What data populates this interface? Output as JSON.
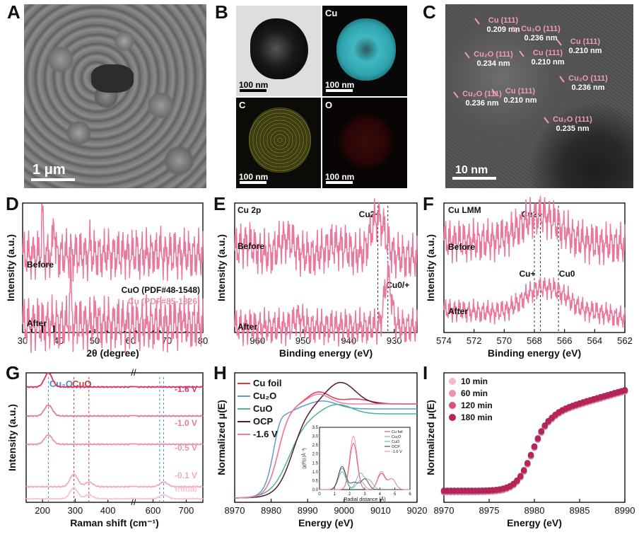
{
  "panel_labels": [
    "A",
    "B",
    "C",
    "D",
    "E",
    "F",
    "G",
    "H",
    "I"
  ],
  "panelA": {
    "scale_bar": "1 μm"
  },
  "panelB": {
    "tiles": [
      {
        "label": "",
        "scale_bar": "100 nm",
        "color": "#dcdcdc"
      },
      {
        "label": "Cu",
        "scale_bar": "100 nm",
        "color": "#0a0a0a"
      },
      {
        "label": "C",
        "scale_bar": "100 nm",
        "color": "#0a0a0a"
      },
      {
        "label": "O",
        "scale_bar": "100 nm",
        "color": "#0a0a0a"
      }
    ]
  },
  "panelC": {
    "scale_bar": "10 nm",
    "annotations": [
      {
        "plane": "Cu (111)",
        "d": "0.209 nm"
      },
      {
        "plane": "Cu₂O (111)",
        "d": "0.236 nm"
      },
      {
        "plane": "Cu (111)",
        "d": "0.210 nm"
      },
      {
        "plane": "Cu₂O (111)",
        "d": "0.234 nm"
      },
      {
        "plane": "Cu (111)",
        "d": "0.210 nm"
      },
      {
        "plane": "Cu₂O (111)",
        "d": "0.236 nm"
      },
      {
        "plane": "Cu₂O (111)",
        "d": "0.236 nm"
      },
      {
        "plane": "Cu (111)",
        "d": "0.210 nm"
      },
      {
        "plane": "Cu₂O (111)",
        "d": "0.235 nm"
      }
    ]
  },
  "chart_data": [
    {
      "id": "D",
      "type": "line",
      "xlabel": "2θ (degree)",
      "ylabel": "Intensity (a.u.)",
      "xlim": [
        30,
        80
      ],
      "xticks": [
        30,
        40,
        50,
        60,
        70,
        80
      ],
      "curve_labels": [
        "Before",
        "After"
      ],
      "references": [
        {
          "name": "CuO (PDF#48-1548)",
          "color": "#111111",
          "lines": [
            [
              32.5,
              0.5
            ],
            [
              35.5,
              1.0
            ],
            [
              38.7,
              1.0
            ],
            [
              48.7,
              0.3
            ],
            [
              53.5,
              0.25
            ],
            [
              58.3,
              0.2
            ],
            [
              61.5,
              0.3
            ],
            [
              66.2,
              0.3
            ],
            [
              68.1,
              0.3
            ],
            [
              72.4,
              0.15
            ],
            [
              75.2,
              0.15
            ]
          ]
        },
        {
          "name": "Cu (PDF#85-1326)",
          "color": "#e890b0",
          "lines": [
            [
              43.3,
              1.0
            ],
            [
              50.4,
              0.5
            ],
            [
              74.1,
              0.3
            ]
          ]
        }
      ],
      "series": [
        {
          "name": "Before",
          "color": "#e8799c",
          "peaks": [
            [
              32.5,
              0.05
            ],
            [
              35.5,
              0.9
            ],
            [
              38.7,
              0.9
            ],
            [
              48.7,
              0.22
            ],
            [
              53.5,
              0.06
            ],
            [
              58.3,
              0.08
            ],
            [
              61.5,
              0.13
            ],
            [
              66.2,
              0.1
            ],
            [
              68.1,
              0.12
            ],
            [
              72.4,
              0.05
            ],
            [
              75.2,
              0.06
            ]
          ]
        },
        {
          "name": "After",
          "color": "#e8799c",
          "peaks": [
            [
              43.3,
              0.92
            ],
            [
              50.4,
              0.28
            ],
            [
              74.1,
              0.18
            ]
          ]
        }
      ]
    },
    {
      "id": "E",
      "type": "line",
      "title": "Cu 2p",
      "xlabel": "Binding energy (eV)",
      "ylabel": "Intensity (a.u.)",
      "xlim": [
        965,
        925
      ],
      "xticks": [
        960,
        950,
        940,
        930
      ],
      "curve_labels": [
        "Before",
        "After"
      ],
      "markers": [
        {
          "x": 933.6,
          "label": "Cu2+"
        },
        {
          "x": 931.4,
          "label": "Cu0/+"
        }
      ],
      "series": [
        {
          "name": "Before",
          "color": "#e8799c",
          "peaks": [
            [
              962.4,
              0.12
            ],
            [
              953.6,
              0.18
            ],
            [
              943.8,
              0.1
            ],
            [
              940.8,
              0.08
            ],
            [
              933.6,
              0.45
            ]
          ]
        },
        {
          "name": "After",
          "color": "#e8799c",
          "peaks": [
            [
              951.0,
              0.1
            ],
            [
              931.4,
              0.5
            ]
          ]
        }
      ]
    },
    {
      "id": "F",
      "type": "line",
      "title": "Cu LMM",
      "xlabel": "Binding energy (eV)",
      "ylabel": "Intensity (a.u.)",
      "xlim": [
        574,
        562
      ],
      "xticks": [
        574,
        572,
        570,
        568,
        566,
        564,
        562
      ],
      "curve_labels": [
        "Before",
        "After"
      ],
      "markers": [
        {
          "x": 568.0,
          "label": "Cu+"
        },
        {
          "x": 567.6,
          "label": "Cu2+"
        },
        {
          "x": 566.4,
          "label": "Cu0"
        }
      ],
      "series": [
        {
          "name": "Before",
          "color": "#e8799c",
          "peaks": [
            [
              567.6,
              0.35
            ]
          ]
        },
        {
          "name": "After",
          "color": "#e8799c",
          "peaks": [
            [
              568.0,
              0.3
            ],
            [
              566.4,
              0.3
            ],
            [
              563.8,
              0.08
            ]
          ]
        }
      ]
    },
    {
      "id": "G",
      "type": "line",
      "xlabel": "Raman shift (cm⁻¹)",
      "ylabel": "Intensity (a.u.)",
      "xlim": [
        150,
        750
      ],
      "xticks": [
        200,
        300,
        400,
        600,
        700
      ],
      "markers": [
        {
          "x": 218,
          "label": "Cu₂O",
          "color": "#4a8fc0"
        },
        {
          "x": 296,
          "label": "",
          "color": "#c94040"
        },
        {
          "x": 342,
          "label": "CuO",
          "color": "#c94040"
        },
        {
          "x": 620,
          "label": "",
          "color": "#4a8fc0"
        },
        {
          "x": 632,
          "label": "",
          "color": "#4a8fc0"
        }
      ],
      "series": [
        {
          "name": "-1.6 V",
          "color": "#d6336c",
          "peaks": [
            [
              218,
              0.9
            ]
          ]
        },
        {
          "name": "-1.0 V",
          "color": "#e57aa0",
          "peaks": [
            [
              218,
              0.7
            ]
          ]
        },
        {
          "name": "-0.5 V",
          "color": "#eb92b2",
          "peaks": [
            [
              218,
              0.6
            ]
          ]
        },
        {
          "name": "-0.1 V",
          "color": "#f1a9c4",
          "peaks": [
            [
              296,
              0.8
            ],
            [
              342,
              0.3
            ],
            [
              632,
              0.3
            ]
          ]
        },
        {
          "name": "Initial",
          "color": "#f6c4d6",
          "peaks": [
            [
              296,
              0.7
            ],
            [
              342,
              0.25
            ],
            [
              632,
              0.25
            ]
          ]
        }
      ]
    },
    {
      "id": "H",
      "type": "line",
      "xlabel": "Energy (eV)",
      "ylabel": "Normalized μ(E)",
      "xlim": [
        8970,
        9020
      ],
      "xticks": [
        8970,
        8980,
        8990,
        9000,
        9010,
        9020
      ],
      "series": [
        {
          "name": "Cu foil",
          "color": "#e63946"
        },
        {
          "name": "Cu₂O",
          "color": "#5aa0c8"
        },
        {
          "name": "CuO",
          "color": "#4fb38a"
        },
        {
          "name": "OCP",
          "color": "#5a1630"
        },
        {
          "name": "-1.6 V",
          "color": "#f07aa8"
        }
      ],
      "inset": {
        "xlabel": "Radial distance (Å)",
        "ylabel": "|χ(R)| (Å⁻³)",
        "xlim": [
          0,
          6
        ],
        "ylim": [
          0,
          3.5
        ],
        "xticks": [
          0,
          1,
          2,
          3,
          4,
          5,
          6
        ],
        "yticks": [
          "0.0",
          "0.5",
          "1.0",
          "1.5",
          "2.0",
          "2.5",
          "3.0",
          "3.5"
        ]
      }
    },
    {
      "id": "I",
      "type": "scatter",
      "xlabel": "Energy (eV)",
      "ylabel": "Normalized μ(E)",
      "xlim": [
        8970,
        8990
      ],
      "xticks": [
        8970,
        8975,
        8980,
        8985,
        8990
      ],
      "series": [
        {
          "name": "10 min",
          "color": "#f5b6cc"
        },
        {
          "name": "60 min",
          "color": "#ee8fb3"
        },
        {
          "name": "120 min",
          "color": "#d94f86"
        },
        {
          "name": "180 min",
          "color": "#b8255a"
        }
      ]
    }
  ]
}
